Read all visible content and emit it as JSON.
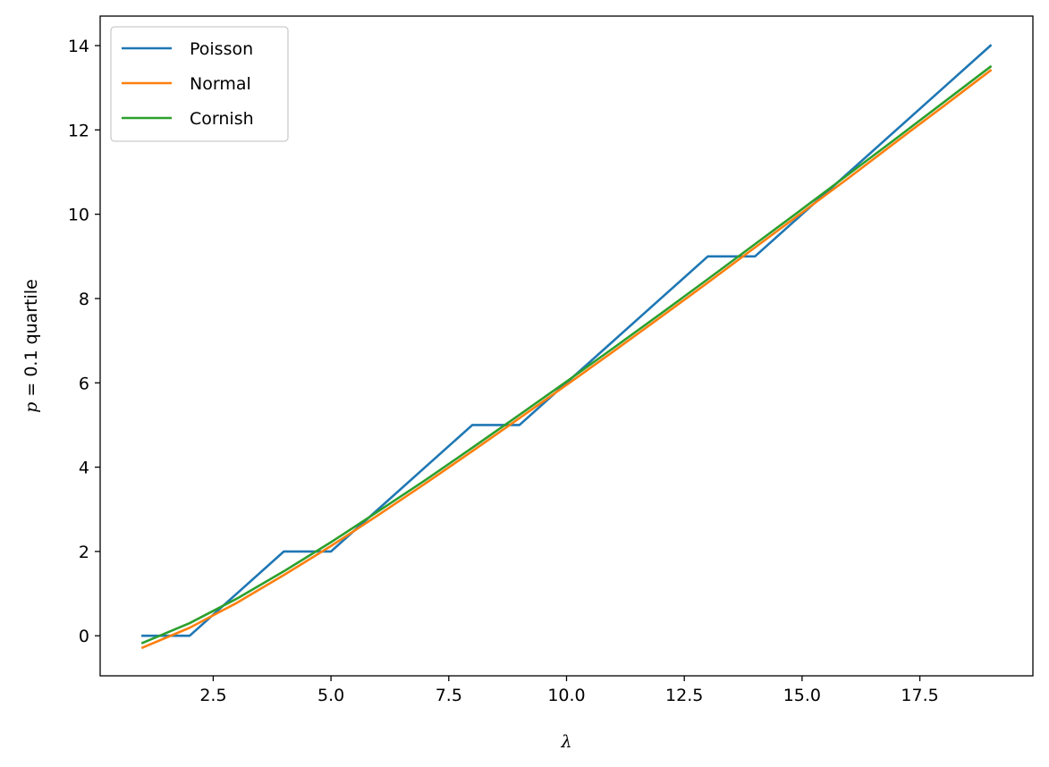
{
  "chart_data": {
    "type": "line",
    "title": "",
    "xlabel": "λ",
    "ylabel_prefix": "p",
    "ylabel_rest": " = 0.1 quartile",
    "xlim": [
      0.1,
      19.9
    ],
    "ylim": [
      -0.95,
      14.7
    ],
    "xticks": [
      2.5,
      5.0,
      7.5,
      10.0,
      12.5,
      15.0,
      17.5
    ],
    "xtick_labels": [
      "2.5",
      "5.0",
      "7.5",
      "10.0",
      "12.5",
      "15.0",
      "17.5"
    ],
    "yticks": [
      0,
      2,
      4,
      6,
      8,
      10,
      12,
      14
    ],
    "ytick_labels": [
      "0",
      "2",
      "4",
      "6",
      "8",
      "10",
      "12",
      "14"
    ],
    "grid": false,
    "legend_position": "upper-left",
    "x": [
      1,
      2,
      3,
      4,
      5,
      6,
      7,
      8,
      9,
      10,
      11,
      12,
      13,
      14,
      15,
      16,
      17,
      18,
      19
    ],
    "series": [
      {
        "name": "Poisson",
        "color": "#1f77b4",
        "values": [
          0,
          0,
          1,
          2,
          2,
          3,
          4,
          5,
          5,
          6,
          7,
          8,
          9,
          9,
          10,
          11,
          12,
          13,
          14
        ]
      },
      {
        "name": "Normal",
        "color": "#ff7f0e",
        "values": [
          -0.28,
          0.19,
          0.78,
          1.44,
          2.13,
          2.86,
          3.61,
          4.38,
          5.16,
          5.95,
          6.75,
          7.56,
          8.38,
          9.21,
          10.04,
          10.87,
          11.72,
          12.56,
          13.41
        ]
      },
      {
        "name": "Cornish",
        "color": "#2ca02c",
        "values": [
          -0.17,
          0.3,
          0.88,
          1.53,
          2.22,
          2.95,
          3.69,
          4.46,
          5.24,
          6.03,
          6.83,
          7.64,
          8.46,
          9.29,
          10.12,
          10.96,
          11.8,
          12.65,
          13.5
        ]
      }
    ]
  }
}
